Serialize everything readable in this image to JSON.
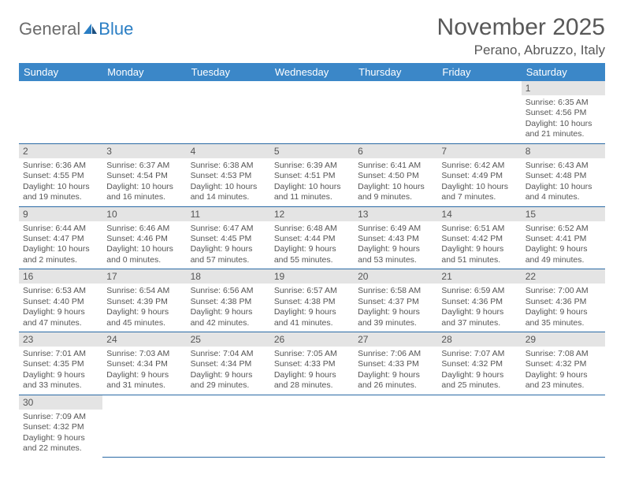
{
  "logo": {
    "text1": "General",
    "text2": "Blue"
  },
  "title": {
    "month": "November 2025",
    "location": "Perano, Abruzzo, Italy"
  },
  "weekdays": [
    "Sunday",
    "Monday",
    "Tuesday",
    "Wednesday",
    "Thursday",
    "Friday",
    "Saturday"
  ],
  "colors": {
    "header_bg": "#3b87c8",
    "header_text": "#ffffff",
    "daynum_bg": "#e4e4e4",
    "rule": "#2a6aa5",
    "text": "#555555"
  },
  "days": [
    {
      "n": "1",
      "sunrise": "Sunrise: 6:35 AM",
      "sunset": "Sunset: 4:56 PM",
      "day1": "Daylight: 10 hours",
      "day2": "and 21 minutes."
    },
    {
      "n": "2",
      "sunrise": "Sunrise: 6:36 AM",
      "sunset": "Sunset: 4:55 PM",
      "day1": "Daylight: 10 hours",
      "day2": "and 19 minutes."
    },
    {
      "n": "3",
      "sunrise": "Sunrise: 6:37 AM",
      "sunset": "Sunset: 4:54 PM",
      "day1": "Daylight: 10 hours",
      "day2": "and 16 minutes."
    },
    {
      "n": "4",
      "sunrise": "Sunrise: 6:38 AM",
      "sunset": "Sunset: 4:53 PM",
      "day1": "Daylight: 10 hours",
      "day2": "and 14 minutes."
    },
    {
      "n": "5",
      "sunrise": "Sunrise: 6:39 AM",
      "sunset": "Sunset: 4:51 PM",
      "day1": "Daylight: 10 hours",
      "day2": "and 11 minutes."
    },
    {
      "n": "6",
      "sunrise": "Sunrise: 6:41 AM",
      "sunset": "Sunset: 4:50 PM",
      "day1": "Daylight: 10 hours",
      "day2": "and 9 minutes."
    },
    {
      "n": "7",
      "sunrise": "Sunrise: 6:42 AM",
      "sunset": "Sunset: 4:49 PM",
      "day1": "Daylight: 10 hours",
      "day2": "and 7 minutes."
    },
    {
      "n": "8",
      "sunrise": "Sunrise: 6:43 AM",
      "sunset": "Sunset: 4:48 PM",
      "day1": "Daylight: 10 hours",
      "day2": "and 4 minutes."
    },
    {
      "n": "9",
      "sunrise": "Sunrise: 6:44 AM",
      "sunset": "Sunset: 4:47 PM",
      "day1": "Daylight: 10 hours",
      "day2": "and 2 minutes."
    },
    {
      "n": "10",
      "sunrise": "Sunrise: 6:46 AM",
      "sunset": "Sunset: 4:46 PM",
      "day1": "Daylight: 10 hours",
      "day2": "and 0 minutes."
    },
    {
      "n": "11",
      "sunrise": "Sunrise: 6:47 AM",
      "sunset": "Sunset: 4:45 PM",
      "day1": "Daylight: 9 hours",
      "day2": "and 57 minutes."
    },
    {
      "n": "12",
      "sunrise": "Sunrise: 6:48 AM",
      "sunset": "Sunset: 4:44 PM",
      "day1": "Daylight: 9 hours",
      "day2": "and 55 minutes."
    },
    {
      "n": "13",
      "sunrise": "Sunrise: 6:49 AM",
      "sunset": "Sunset: 4:43 PM",
      "day1": "Daylight: 9 hours",
      "day2": "and 53 minutes."
    },
    {
      "n": "14",
      "sunrise": "Sunrise: 6:51 AM",
      "sunset": "Sunset: 4:42 PM",
      "day1": "Daylight: 9 hours",
      "day2": "and 51 minutes."
    },
    {
      "n": "15",
      "sunrise": "Sunrise: 6:52 AM",
      "sunset": "Sunset: 4:41 PM",
      "day1": "Daylight: 9 hours",
      "day2": "and 49 minutes."
    },
    {
      "n": "16",
      "sunrise": "Sunrise: 6:53 AM",
      "sunset": "Sunset: 4:40 PM",
      "day1": "Daylight: 9 hours",
      "day2": "and 47 minutes."
    },
    {
      "n": "17",
      "sunrise": "Sunrise: 6:54 AM",
      "sunset": "Sunset: 4:39 PM",
      "day1": "Daylight: 9 hours",
      "day2": "and 45 minutes."
    },
    {
      "n": "18",
      "sunrise": "Sunrise: 6:56 AM",
      "sunset": "Sunset: 4:38 PM",
      "day1": "Daylight: 9 hours",
      "day2": "and 42 minutes."
    },
    {
      "n": "19",
      "sunrise": "Sunrise: 6:57 AM",
      "sunset": "Sunset: 4:38 PM",
      "day1": "Daylight: 9 hours",
      "day2": "and 41 minutes."
    },
    {
      "n": "20",
      "sunrise": "Sunrise: 6:58 AM",
      "sunset": "Sunset: 4:37 PM",
      "day1": "Daylight: 9 hours",
      "day2": "and 39 minutes."
    },
    {
      "n": "21",
      "sunrise": "Sunrise: 6:59 AM",
      "sunset": "Sunset: 4:36 PM",
      "day1": "Daylight: 9 hours",
      "day2": "and 37 minutes."
    },
    {
      "n": "22",
      "sunrise": "Sunrise: 7:00 AM",
      "sunset": "Sunset: 4:36 PM",
      "day1": "Daylight: 9 hours",
      "day2": "and 35 minutes."
    },
    {
      "n": "23",
      "sunrise": "Sunrise: 7:01 AM",
      "sunset": "Sunset: 4:35 PM",
      "day1": "Daylight: 9 hours",
      "day2": "and 33 minutes."
    },
    {
      "n": "24",
      "sunrise": "Sunrise: 7:03 AM",
      "sunset": "Sunset: 4:34 PM",
      "day1": "Daylight: 9 hours",
      "day2": "and 31 minutes."
    },
    {
      "n": "25",
      "sunrise": "Sunrise: 7:04 AM",
      "sunset": "Sunset: 4:34 PM",
      "day1": "Daylight: 9 hours",
      "day2": "and 29 minutes."
    },
    {
      "n": "26",
      "sunrise": "Sunrise: 7:05 AM",
      "sunset": "Sunset: 4:33 PM",
      "day1": "Daylight: 9 hours",
      "day2": "and 28 minutes."
    },
    {
      "n": "27",
      "sunrise": "Sunrise: 7:06 AM",
      "sunset": "Sunset: 4:33 PM",
      "day1": "Daylight: 9 hours",
      "day2": "and 26 minutes."
    },
    {
      "n": "28",
      "sunrise": "Sunrise: 7:07 AM",
      "sunset": "Sunset: 4:32 PM",
      "day1": "Daylight: 9 hours",
      "day2": "and 25 minutes."
    },
    {
      "n": "29",
      "sunrise": "Sunrise: 7:08 AM",
      "sunset": "Sunset: 4:32 PM",
      "day1": "Daylight: 9 hours",
      "day2": "and 23 minutes."
    },
    {
      "n": "30",
      "sunrise": "Sunrise: 7:09 AM",
      "sunset": "Sunset: 4:32 PM",
      "day1": "Daylight: 9 hours",
      "day2": "and 22 minutes."
    }
  ]
}
